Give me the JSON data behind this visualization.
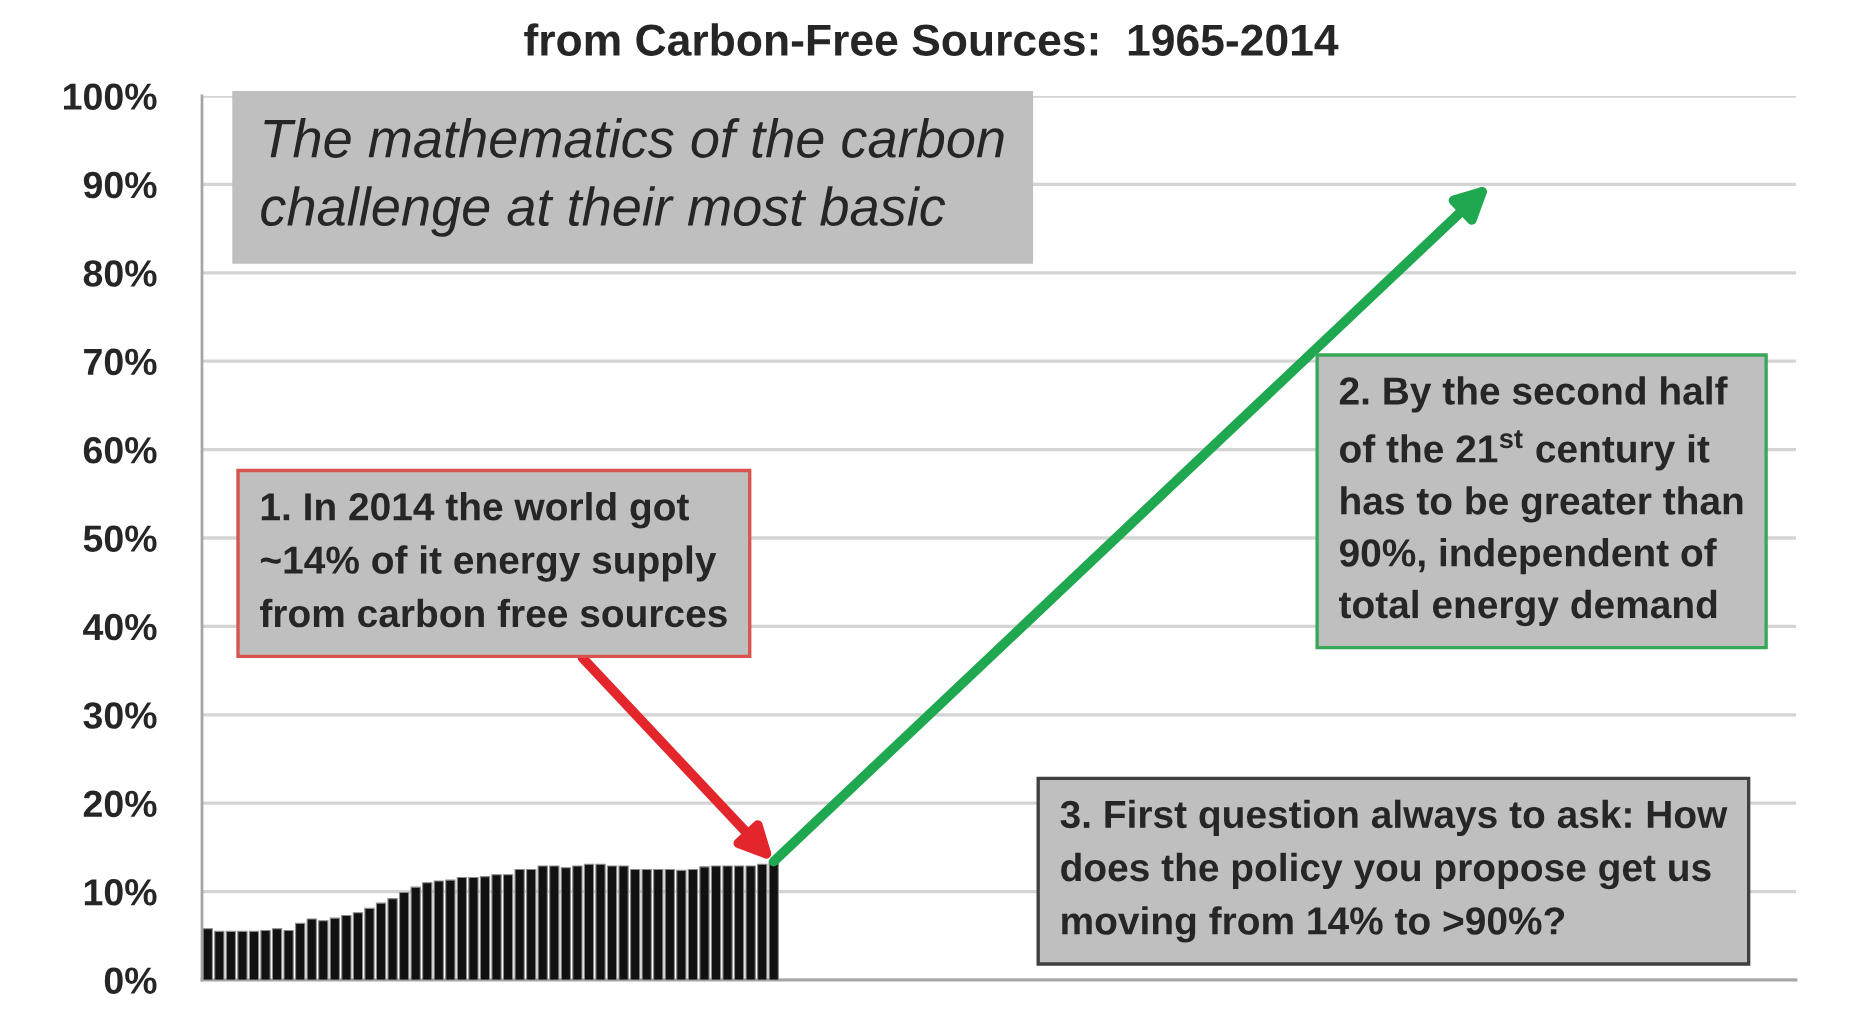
{
  "chart_data": {
    "type": "bar",
    "title": "from Carbon-Free Sources:  1965-2014",
    "categories": [
      null,
      null,
      null,
      null,
      null,
      null,
      null,
      null,
      null,
      null,
      null,
      null,
      null,
      null,
      null,
      null,
      null,
      null,
      null,
      null,
      null,
      null,
      null,
      null,
      null,
      null,
      null,
      null,
      null,
      null,
      null,
      null,
      null,
      null,
      null,
      null,
      null,
      null,
      null,
      null,
      null,
      null,
      null,
      null,
      null,
      null,
      null,
      null,
      null,
      null,
      null,
      null,
      null,
      null,
      null,
      null,
      null,
      null,
      null,
      null,
      null,
      null,
      null,
      null,
      null,
      null,
      null,
      null,
      null,
      null,
      null,
      null,
      null,
      null,
      null,
      null,
      null,
      null,
      null,
      null,
      null,
      null,
      null,
      null,
      null,
      null,
      null,
      null,
      null,
      null,
      null,
      null,
      null,
      null,
      null,
      null,
      null,
      null,
      null,
      null,
      null,
      null,
      null,
      null,
      null,
      null,
      null,
      null,
      null,
      null,
      null,
      null,
      null,
      null,
      null,
      null,
      null,
      null,
      null,
      null,
      null,
      null,
      null,
      null,
      null,
      null,
      null,
      null,
      null,
      null,
      null,
      null,
      null,
      null,
      null,
      null,
      null,
      null
    ],
    "values": [
      5.8,
      5.5,
      5.5,
      5.5,
      5.5,
      5.6,
      5.8,
      5.6,
      6.4,
      6.9,
      6.7,
      7.0,
      7.3,
      7.6,
      8.1,
      8.7,
      9.2,
      9.9,
      10.5,
      11.0,
      11.2,
      11.3,
      11.6,
      11.6,
      11.7,
      11.9,
      11.9,
      12.5,
      12.5,
      12.9,
      12.9,
      12.7,
      12.9,
      13.1,
      13.1,
      12.9,
      12.9,
      12.5,
      12.5,
      12.5,
      12.5,
      12.4,
      12.5,
      12.8,
      12.9,
      12.9,
      12.9,
      12.9,
      13.1,
      13.4,
      null,
      null,
      null,
      null,
      null,
      null,
      null,
      null,
      null,
      null,
      null,
      null,
      null,
      null,
      null,
      null,
      null,
      null,
      null,
      null,
      null,
      null,
      null,
      null,
      null,
      null,
      null,
      null,
      null,
      null,
      null,
      null,
      null,
      null,
      null,
      null,
      null,
      null,
      null,
      null,
      null,
      null,
      null,
      null,
      null,
      null,
      null,
      null,
      null,
      null,
      null,
      null,
      null,
      null,
      null,
      null,
      null,
      null,
      null,
      null,
      null,
      null,
      null,
      null,
      null,
      null,
      null,
      null,
      null,
      null,
      null,
      null,
      null,
      null,
      null,
      null,
      null,
      null,
      null,
      null,
      null,
      null,
      null,
      null,
      null,
      null,
      null,
      null
    ],
    "color": "#111111",
    "ylim": [
      0,
      100
    ],
    "yticks": [
      {
        "value": 0,
        "label": "0%"
      },
      {
        "value": 10,
        "label": "10%"
      },
      {
        "value": 20,
        "label": "20%"
      },
      {
        "value": 30,
        "label": "30%"
      },
      {
        "value": 40,
        "label": "40%"
      },
      {
        "value": 50,
        "label": "50%"
      },
      {
        "value": 60,
        "label": "60%"
      },
      {
        "value": 70,
        "label": "70%"
      },
      {
        "value": 80,
        "label": "80%"
      },
      {
        "value": 90,
        "label": "90%"
      },
      {
        "value": 100,
        "label": "100%"
      }
    ],
    "grid": "y",
    "annotations": [
      "The mathematics of the carbon\nchallenge at their most basic",
      "1. In 2014 the world got\n~14% of it energy supply\nfrom carbon free sources",
      "2. By the second half\nof the 21$^{st}$ century it\nhas to be greater than\n90%, independent of\ntotal energy demand",
      "3. First question always to ask: How\ndoes the policy you propose get us\nmoving from 14% to >90%?"
    ]
  }
}
